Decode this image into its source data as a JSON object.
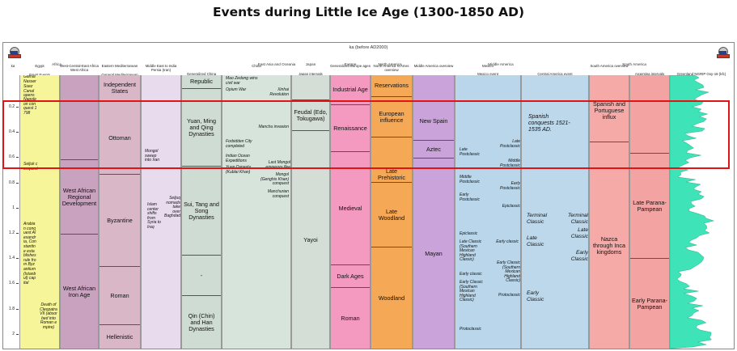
{
  "title": "Events during Little Ice Age (1300-1850 AD)",
  "top_header": "ka (before AD2000)",
  "axis": {
    "unit_label": "ka",
    "ticks": [
      "0.2",
      "0.4",
      "0.6",
      "0.8",
      "1",
      "1.2",
      "1.4",
      "1.6",
      "1.8",
      "2"
    ]
  },
  "regions": {
    "africa": "Africa",
    "east_asia": "East Asia and Oceania",
    "japan": "Japan",
    "europe": "Europe",
    "north_america": "North America",
    "middle_america": "Middle America",
    "south_america": "South America"
  },
  "columns": {
    "egypt": {
      "head": "Egypt",
      "sub": "Egypt Events"
    },
    "west_africa": {
      "head": "West-Central-East Africa",
      "sub": "West Africa"
    },
    "mediterranean": {
      "head": "Eastern Mediterranean",
      "sub": "General Mediterranean"
    },
    "middle_east": {
      "head": "Middle East to India",
      "sub": "Persia (Iran)"
    },
    "gen_china": {
      "head": "Generalized China",
      "sub": ""
    },
    "china": {
      "head": "China",
      "sub": ""
    },
    "japan": {
      "head": "Japan",
      "sub": "Japan intervals"
    },
    "europe": {
      "head": "Generalized Europe ages",
      "sub": ""
    },
    "north_america": {
      "head": "North America N.Amer. overview",
      "sub": ""
    },
    "mid_america_overview": {
      "head": "Middle America overview",
      "sub": ""
    },
    "mexico": {
      "head": "Mexico",
      "sub": "Mexico event"
    },
    "central_america": {
      "head": "Central America",
      "sub": "Central America event"
    },
    "south_america": {
      "head": "South America overview",
      "sub": ""
    },
    "argentina": {
      "head": "Argentina",
      "sub": "Argentina intervals"
    },
    "greenland": {
      "head": "Greenland NGRIP Oxy-18 (kfc)",
      "sub": ""
    }
  },
  "egypt_events": {
    "e1": "Gamal Nasser",
    "e2": "Suez Canal opens",
    "e3": "Napoleon conquest 1798",
    "e4": "Seljuk conquest",
    "e5": "Arabian conquest Alexandria, Constantine establishes rule from Byzantium (Istanbul) capital",
    "e6": "Death of Cleopatra VII (absorbed into Roman empire)"
  },
  "west_africa": {
    "s1": "West African Regional Development",
    "s2": "West African Iron Age"
  },
  "mediterranean": {
    "s1": "Independent States",
    "s2": "Ottoman",
    "s3": "Byzantine",
    "s4": "Roman",
    "s5": "Hellenistic"
  },
  "middle_east": {
    "m1": "Mongol sweep into Iran",
    "m2": "Islam center shifts from Syria to Iraq",
    "m3": "Seljuq nomads take over Baghdad"
  },
  "gen_china": {
    "s1": "Republic",
    "s2": "Yuan, Ming and Qing Dynasties",
    "s3": "Sui, Tang and Song Dynasties",
    "s4": "-",
    "s5": "Qin (Chin) and Han Dynasties"
  },
  "china_events": {
    "c1": "Mao Zedong wins civil war",
    "c2": "Opium War",
    "c3": "Xinhai Revolution",
    "c4": "Manchu invasion",
    "c5": "Forbidden City completed",
    "c6": "Indian Ocean Expeditions",
    "c7": "Yuan Dynasty (Kublai Khan)",
    "c8": "Last Mongol emperors flee",
    "c9": "Mongol (Genghis Khan) conquest",
    "c10": "Manchurian conquest"
  },
  "japan": {
    "s1": "Feudal (Edo, Tokugawa)",
    "s2": "Yayoi"
  },
  "europe": {
    "s1": "Industrial Age",
    "s2": "Renaissance",
    "s3": "Medieval",
    "s4": "Dark Ages",
    "s5": "Roman"
  },
  "north_america": {
    "s1": "Reservations",
    "s2": "European influence",
    "s3": "Late Prehistoric",
    "s4": "Late Woodland",
    "s5": "Woodland"
  },
  "mid_america_overview": {
    "s1": "New Spain",
    "s2": "Aztec",
    "s3": "Mayan"
  },
  "mexico_events": {
    "x1": "Late Postclassic",
    "x2": "Late Postclassic",
    "x3": "Middle Postclassic",
    "x4": "Middle Postclassic",
    "x5": "Early Postclassic",
    "x6": "Early Postclassic",
    "x7": "Epiclassic",
    "x8": "Epiclassic",
    "x9": "Late Classic (Southern Mexican Highland Classic)",
    "x10": "Early classic",
    "x11": "Early classic",
    "x12": "Early Classic (Southern Mexican Highland Classic)",
    "x13": "Early Classic (Southern Mexican Highland Classic)",
    "x14": "Protoclassic",
    "x15": "Protoclassic"
  },
  "central_america_events": {
    "a1": "Spanish conquests 1521-1535 AD.",
    "a2": "Terminal Classic",
    "a3": "Terminal Classic",
    "a4": "Late Classic",
    "a5": "Late Classic",
    "a6": "Early Classic",
    "a7": "Early Classic"
  },
  "south_america": {
    "s1": "Spanish and Portuguese influx",
    "s2": "Nazca through Inca kingdoms"
  },
  "argentina": {
    "s1": "Late Parana-Pampean",
    "s2": "Early Parana-Pampean"
  },
  "colors": {
    "egypt": "#f6f59a",
    "west_africa": "#c9a2bf",
    "mediterranean": "#d9b7c7",
    "middle_east": "#e9dbee",
    "gen_china": "#cfdcd3",
    "china": "#d6e4db",
    "japan": "#d4ded6",
    "europe": "#f49ac0",
    "north_america": "#f5a856",
    "mid_america": "#c9a3da",
    "mexico": "#b9d6ea",
    "central_america": "#bdd8ea",
    "south_america": "#f5aaa7",
    "argentina": "#f3a3a1",
    "greenland": "#3ee3b7",
    "highlight": "#e01414"
  },
  "icons": {
    "left": "globe-logo-icon",
    "right": "globe-logo-icon"
  }
}
